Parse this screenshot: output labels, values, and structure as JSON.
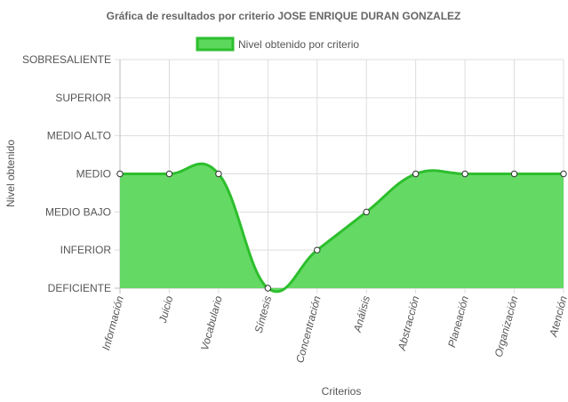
{
  "chart_data": {
    "type": "area",
    "title": "Gráfica de resultados por criterio JOSE ENRIQUE DURAN GONZALEZ",
    "xlabel": "Criterios",
    "ylabel": "Nivel obtenido",
    "y_levels": [
      "DEFICIENTE",
      "INFERIOR",
      "MEDIO BAJO",
      "MEDIO",
      "MEDIO ALTO",
      "SUPERIOR",
      "SOBRESALIENTE"
    ],
    "categories": [
      "Información",
      "Juicio",
      "Vocabulario",
      "Síntesis",
      "Concentración",
      "Análisis",
      "Abstracción",
      "Planeación",
      "Organización",
      "Atención"
    ],
    "series": [
      {
        "name": "Nivel obtenido por criterio",
        "values": [
          "MEDIO",
          "MEDIO",
          "MEDIO",
          "DEFICIENTE",
          "INFERIOR",
          "MEDIO BAJO",
          "MEDIO",
          "MEDIO",
          "MEDIO",
          "MEDIO"
        ],
        "values_numeric": [
          3,
          3,
          3,
          0,
          1,
          2,
          3,
          3,
          3,
          3
        ]
      }
    ],
    "ylim": [
      0,
      6
    ],
    "grid": true,
    "legend_position": "top",
    "colors": {
      "fill": "#5cd85c",
      "line": "#2dbe2d",
      "point_fill": "#ffffff",
      "point_stroke": "#333333",
      "grid": "#dddddd"
    }
  }
}
